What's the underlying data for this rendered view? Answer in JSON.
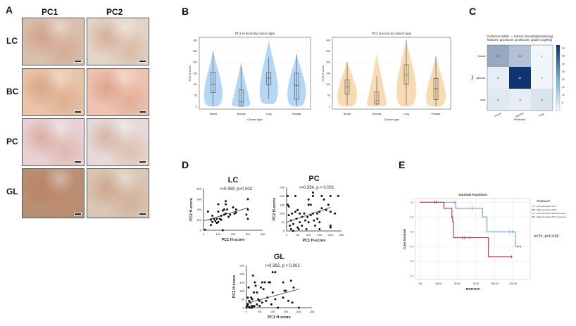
{
  "panels": {
    "a": "A",
    "b": "B",
    "c": "C",
    "d": "D",
    "e": "E"
  },
  "histology": {
    "columns": [
      "PC1",
      "PC2"
    ],
    "rows": [
      "LC",
      "BC",
      "PC",
      "GL"
    ],
    "tints": [
      [
        "#d9bfae",
        "#e2d4c8"
      ],
      [
        "#e8c4a8",
        "#eec3b2"
      ],
      [
        "#e8d0d4",
        "#e6dad8"
      ],
      [
        "#b98f74",
        "#d8c6b6"
      ]
    ]
  },
  "chart_data": [
    {
      "type": "violin",
      "title": "PC1 H-score by cancer type",
      "xlabel": "Cancer type",
      "ylabel": "PC1 H-score",
      "ylim": [
        0,
        300
      ],
      "yticks": [
        0,
        50,
        100,
        150,
        200,
        250,
        300
      ],
      "color": "#9cc8f0",
      "categories": [
        "Breast",
        "Gliomas",
        "Lung",
        "Prostate"
      ],
      "box": [
        {
          "min": 0,
          "q1": 62,
          "median": 100,
          "q3": 155,
          "max": 250,
          "vmin": 0,
          "vmax": 250,
          "mode": 100
        },
        {
          "min": 0,
          "q1": 0,
          "median": 20,
          "q3": 75,
          "max": 180,
          "vmin": 0,
          "vmax": 200,
          "mode": 15
        },
        {
          "min": 35,
          "q1": 97,
          "median": 128,
          "q3": 152,
          "max": 222,
          "vmin": 10,
          "vmax": 300,
          "mode": 125
        },
        {
          "min": 0,
          "q1": 32,
          "median": 95,
          "q3": 150,
          "max": 235,
          "vmin": 0,
          "vmax": 235,
          "mode": 110
        }
      ]
    },
    {
      "type": "violin",
      "title": "PC2 H-score by cancer type",
      "xlabel": "Cancer type",
      "ylabel": "PC2 H-score",
      "ylim": [
        0,
        300
      ],
      "yticks": [
        0,
        50,
        100,
        150,
        200,
        250,
        300
      ],
      "color": "#f7cf9a",
      "categories": [
        "Breast",
        "Gliomas",
        "Lung",
        "Prostate"
      ],
      "box": [
        {
          "min": 5,
          "q1": 55,
          "median": 88,
          "q3": 120,
          "max": 200,
          "vmin": 0,
          "vmax": 200,
          "mode": 90
        },
        {
          "min": 5,
          "q1": 10,
          "median": 25,
          "q3": 65,
          "max": 135,
          "vmin": 0,
          "vmax": 240,
          "mode": 20
        },
        {
          "min": 5,
          "q1": 100,
          "median": 142,
          "q3": 188,
          "max": 300,
          "vmin": 0,
          "vmax": 300,
          "mode": 130
        },
        {
          "min": 0,
          "q1": 30,
          "median": 80,
          "q3": 127,
          "max": 225,
          "vmin": 0,
          "vmax": 225,
          "mode": 80
        }
      ]
    },
    {
      "type": "heatmap",
      "title": "Confusion Matrix — Cancer (breast/gliomas/lung)",
      "subtitle": "features: pc1hscore, pc2hscore, grade (LogReg)",
      "xlabel": "Predicted",
      "ylabel": "True",
      "labels": [
        "breast",
        "gliomas",
        "lung"
      ],
      "matrix": [
        [
          17,
          12,
          1
        ],
        [
          3,
          41,
          1
        ],
        [
          4,
          3,
          5
        ]
      ],
      "colorbar_ticks": [
        5,
        10,
        15,
        20,
        25,
        30,
        35,
        40
      ],
      "vmax": 42
    },
    {
      "type": "scatter",
      "title": "LC",
      "annotation": "r=0.459, p=0.002",
      "xlabel": "PC1 H-score",
      "ylabel": "PC2 H-score",
      "xlim": [
        0,
        400
      ],
      "ylim": [
        0,
        400
      ],
      "xticks": [
        0,
        100,
        200,
        300,
        400
      ],
      "yticks": [
        0,
        100,
        200,
        300,
        400
      ],
      "fit": [
        [
          0,
          90
        ],
        [
          300,
          215
        ]
      ],
      "points": [
        [
          10,
          5
        ],
        [
          30,
          180
        ],
        [
          50,
          100
        ],
        [
          50,
          50
        ],
        [
          60,
          140
        ],
        [
          70,
          110
        ],
        [
          80,
          90
        ],
        [
          90,
          70
        ],
        [
          90,
          110
        ],
        [
          100,
          80
        ],
        [
          100,
          180
        ],
        [
          100,
          250
        ],
        [
          110,
          110
        ],
        [
          120,
          140
        ],
        [
          130,
          190
        ],
        [
          130,
          0
        ],
        [
          140,
          150
        ],
        [
          140,
          200
        ],
        [
          150,
          250
        ],
        [
          150,
          280
        ],
        [
          150,
          160
        ],
        [
          160,
          200
        ],
        [
          170,
          130
        ],
        [
          180,
          150
        ],
        [
          200,
          220
        ],
        [
          210,
          160
        ],
        [
          220,
          200
        ],
        [
          220,
          170
        ],
        [
          290,
          150
        ],
        [
          300,
          300
        ],
        [
          300,
          200
        ],
        [
          300,
          110
        ],
        [
          60,
          80
        ],
        [
          120,
          100
        ]
      ]
    },
    {
      "type": "scatter",
      "title": "PC",
      "annotation": "r=0.354, p < 0.001",
      "xlabel": "PC1 H-score",
      "ylabel": "PC2 H-score",
      "xlim": [
        0,
        250
      ],
      "ylim": [
        0,
        250
      ],
      "xticks": [
        0,
        50,
        100,
        150,
        200,
        250
      ],
      "yticks": [
        0,
        50,
        100,
        150,
        200,
        250
      ],
      "fit": [
        [
          0,
          50
        ],
        [
          200,
          135
        ]
      ],
      "points": [
        [
          5,
          200
        ],
        [
          5,
          150
        ],
        [
          10,
          140
        ],
        [
          10,
          90
        ],
        [
          15,
          30
        ],
        [
          20,
          10
        ],
        [
          20,
          60
        ],
        [
          25,
          100
        ],
        [
          30,
          40
        ],
        [
          40,
          200
        ],
        [
          40,
          110
        ],
        [
          45,
          70
        ],
        [
          50,
          120
        ],
        [
          50,
          20
        ],
        [
          60,
          100
        ],
        [
          60,
          50
        ],
        [
          70,
          80
        ],
        [
          70,
          30
        ],
        [
          80,
          100
        ],
        [
          85,
          60
        ],
        [
          90,
          10
        ],
        [
          100,
          150
        ],
        [
          100,
          180
        ],
        [
          100,
          50
        ],
        [
          110,
          90
        ],
        [
          110,
          150
        ],
        [
          120,
          220
        ],
        [
          120,
          200
        ],
        [
          120,
          100
        ],
        [
          130,
          30
        ],
        [
          140,
          70
        ],
        [
          140,
          100
        ],
        [
          150,
          110
        ],
        [
          150,
          10
        ],
        [
          150,
          50
        ],
        [
          160,
          200
        ],
        [
          160,
          130
        ],
        [
          170,
          180
        ],
        [
          180,
          120
        ],
        [
          190,
          150
        ],
        [
          200,
          200
        ],
        [
          200,
          20
        ],
        [
          200,
          30
        ],
        [
          200,
          110
        ],
        [
          220,
          100
        ],
        [
          235,
          200
        ],
        [
          30,
          0
        ],
        [
          55,
          10
        ],
        [
          95,
          80
        ],
        [
          125,
          60
        ]
      ]
    },
    {
      "type": "scatter",
      "title": "GL",
      "annotation": "r=0.392, p < 0.001",
      "xlabel": "PC1 H-score",
      "ylabel": "PC2 H-score",
      "xlim": [
        0,
        250
      ],
      "ylim": [
        0,
        250
      ],
      "xticks": [
        0,
        50,
        100,
        150,
        200,
        250
      ],
      "yticks": [
        0,
        50,
        100,
        150,
        200,
        250
      ],
      "fit": [
        [
          0,
          25
        ],
        [
          200,
          110
        ]
      ],
      "points": [
        [
          0,
          0
        ],
        [
          2,
          10
        ],
        [
          5,
          20
        ],
        [
          5,
          60
        ],
        [
          8,
          120
        ],
        [
          10,
          5
        ],
        [
          10,
          40
        ],
        [
          12,
          0
        ],
        [
          15,
          30
        ],
        [
          18,
          60
        ],
        [
          20,
          10
        ],
        [
          20,
          0
        ],
        [
          22,
          50
        ],
        [
          25,
          190
        ],
        [
          28,
          90
        ],
        [
          30,
          10
        ],
        [
          32,
          150
        ],
        [
          35,
          130
        ],
        [
          40,
          90
        ],
        [
          40,
          20
        ],
        [
          45,
          50
        ],
        [
          50,
          40
        ],
        [
          50,
          10
        ],
        [
          55,
          120
        ],
        [
          60,
          150
        ],
        [
          60,
          30
        ],
        [
          70,
          150
        ],
        [
          75,
          40
        ],
        [
          80,
          60
        ],
        [
          85,
          150
        ],
        [
          90,
          150
        ],
        [
          95,
          20
        ],
        [
          100,
          210
        ],
        [
          100,
          90
        ],
        [
          110,
          210
        ],
        [
          110,
          50
        ],
        [
          120,
          0
        ],
        [
          140,
          150
        ],
        [
          140,
          60
        ],
        [
          145,
          100
        ],
        [
          150,
          100
        ],
        [
          160,
          40
        ],
        [
          170,
          160
        ],
        [
          175,
          30
        ],
        [
          180,
          120
        ],
        [
          200,
          0
        ],
        [
          65,
          110
        ],
        [
          25,
          5
        ]
      ]
    },
    {
      "type": "line",
      "title": "Survival Functions",
      "xlabel": "MONTHS",
      "ylabel": "Cum Survival",
      "xlim": [
        -6,
        148
      ],
      "ylim": [
        0,
        1.05
      ],
      "xticks": [
        0,
        25,
        50,
        75,
        100,
        125
      ],
      "xticklabels": [
        ".00",
        "25.00",
        "50.00",
        "75.00",
        "100.00",
        "125.00"
      ],
      "yticks": [
        0,
        0.2,
        0.4,
        0.6,
        0.8,
        1.0
      ],
      "yticklabels": [
        "0.0",
        "0.2",
        "0.4",
        "0.6",
        "0.8",
        "1.0"
      ],
      "legend_title": "PC2Her2+",
      "legend": [
        "Low expression PC2",
        "High expression PC2",
        "Low expression PC2-censored",
        "High expression PC2-censored"
      ],
      "annotation": "n=29, p=0.049",
      "series": [
        {
          "name": "Low expression PC2",
          "color": "#6f9fd3",
          "steps": [
            [
              0,
              1
            ],
            [
              48,
              0.917
            ],
            [
              84,
              0.8
            ],
            [
              90,
              0.6
            ],
            [
              128,
              0.4
            ],
            [
              135,
              0.4
            ]
          ],
          "censored": [
            [
              47,
              1
            ],
            [
              70,
              0.917
            ],
            [
              120,
              0.6
            ],
            [
              124,
              0.6
            ],
            [
              131,
              0.4
            ],
            [
              135,
              0.4
            ]
          ]
        },
        {
          "name": "High expression PC2",
          "color": "#c8285a",
          "steps": [
            [
              0,
              1
            ],
            [
              32,
              0.917
            ],
            [
              43,
              0.8
            ],
            [
              44,
              0.733
            ],
            [
              45,
              0.52
            ],
            [
              92,
              0.26
            ],
            [
              123,
              0.26
            ]
          ],
          "censored": [
            [
              20,
              1
            ],
            [
              22,
              1
            ],
            [
              43,
              0.8
            ],
            [
              57,
              0.52
            ],
            [
              60,
              0.52
            ],
            [
              67,
              0.52
            ],
            [
              123,
              0.26
            ]
          ]
        }
      ]
    }
  ]
}
